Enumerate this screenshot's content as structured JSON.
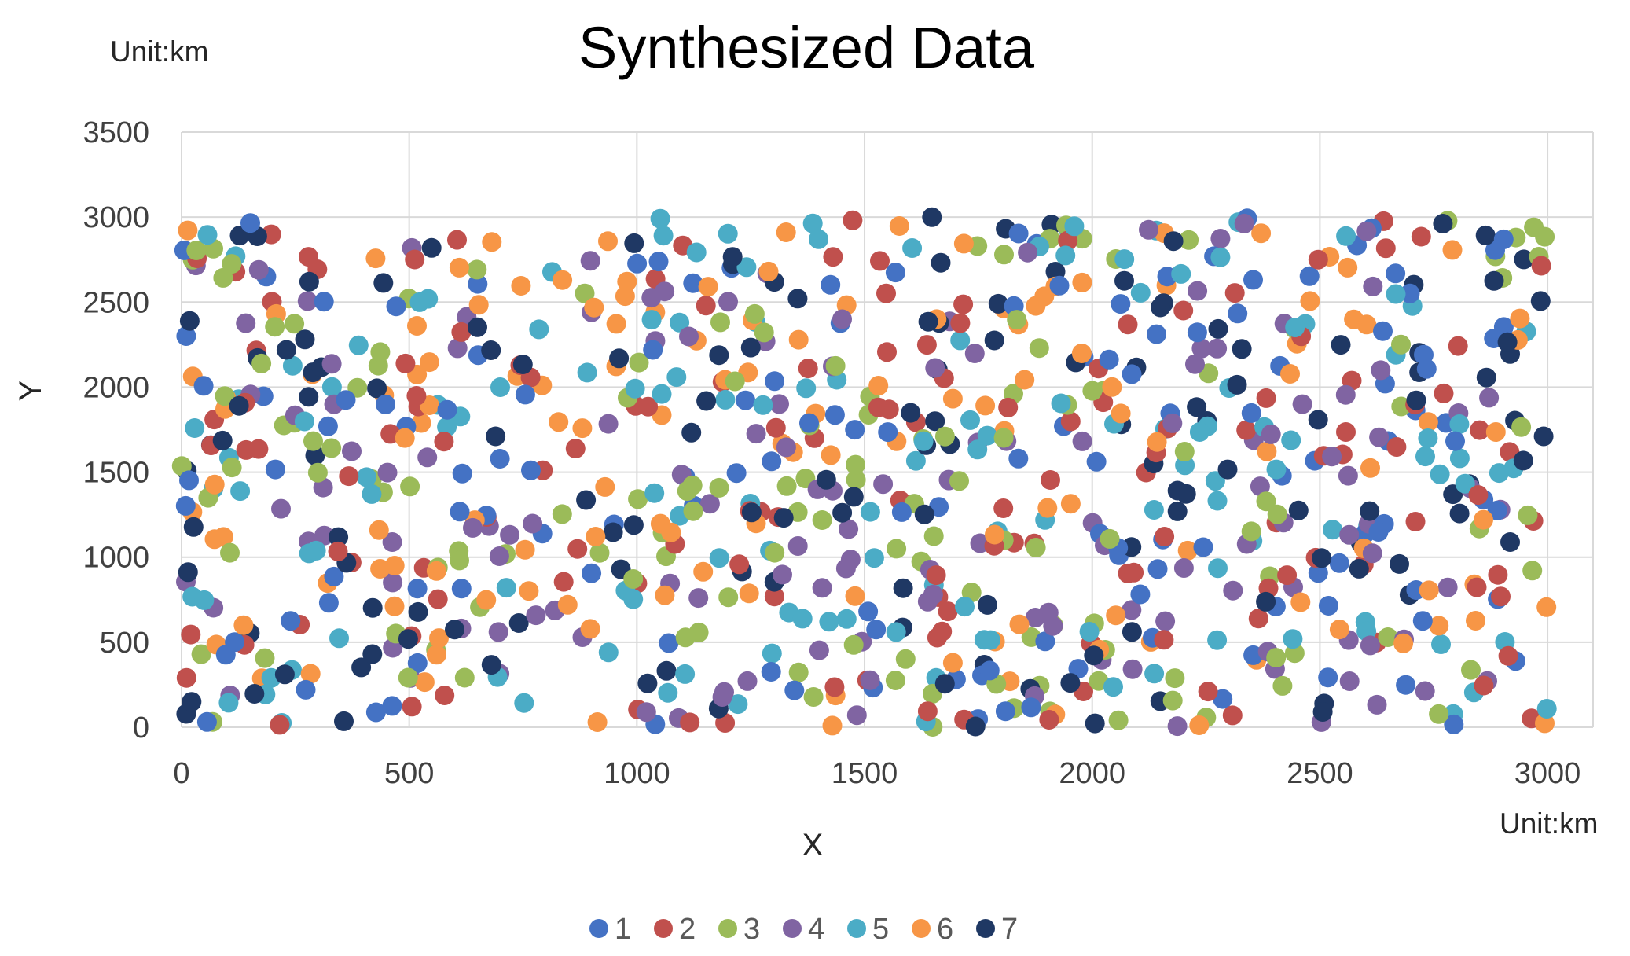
{
  "chart_data": {
    "type": "scatter",
    "title": "Synthesized Data",
    "unit_y": "Unit:km",
    "unit_x": "Unit:km",
    "xlabel": "X",
    "ylabel": "Y",
    "xlim": [
      0,
      3100
    ],
    "ylim": [
      0,
      3500
    ],
    "xticks": [
      "0",
      "500",
      "1000",
      "1500",
      "2000",
      "2500",
      "3000"
    ],
    "yticks": [
      "0",
      "500",
      "1000",
      "1500",
      "2000",
      "2500",
      "3000",
      "3500"
    ],
    "grid": true,
    "legend_position": "bottom",
    "points_per_series": 140,
    "x_range": [
      0,
      3000
    ],
    "y_range": [
      0,
      3000
    ],
    "series": [
      {
        "name": "1",
        "color": "#4472C4",
        "seed": 11
      },
      {
        "name": "2",
        "color": "#C0504D",
        "seed": 23
      },
      {
        "name": "3",
        "color": "#9BBB59",
        "seed": 37
      },
      {
        "name": "4",
        "color": "#8064A2",
        "seed": 41
      },
      {
        "name": "5",
        "color": "#4BACC6",
        "seed": 53
      },
      {
        "name": "6",
        "color": "#F79646",
        "seed": 67
      },
      {
        "name": "7",
        "color": "#1F3864",
        "seed": 79
      }
    ]
  }
}
